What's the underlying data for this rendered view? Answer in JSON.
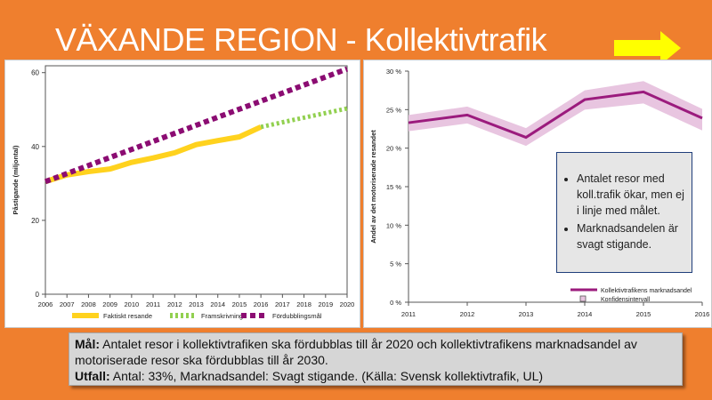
{
  "slide": {
    "title": "VÄXANDE REGION - Kollektivtrafik",
    "colors": {
      "background": "#ef7f2e",
      "arrow": "#ffff00"
    }
  },
  "chart_data": [
    {
      "type": "line",
      "ylabel": "Påstigande (miljontal)",
      "xlabel": "",
      "x": [
        2006,
        2007,
        2008,
        2009,
        2010,
        2011,
        2012,
        2013,
        2014,
        2015,
        2016,
        2017,
        2018,
        2019,
        2020
      ],
      "ylim": [
        0,
        60
      ],
      "yticks": [
        0,
        20,
        40,
        60
      ],
      "series": [
        {
          "name": "Faktiskt resande",
          "color": "#ffd21e",
          "style": "solid",
          "x": [
            2006,
            2007,
            2008,
            2009,
            2010,
            2011,
            2012,
            2013,
            2014,
            2015,
            2016
          ],
          "values": [
            30.5,
            32.3,
            33.2,
            33.9,
            35.7,
            36.9,
            38.3,
            40.5,
            41.6,
            42.6,
            45.3
          ]
        },
        {
          "name": "Framskrivning",
          "color": "#92d050",
          "style": "dashed",
          "x": [
            2016,
            2020
          ],
          "values": [
            45.3,
            50.3
          ]
        },
        {
          "name": "Fördubblingsmål",
          "color": "#8b0c72",
          "style": "dashed",
          "x": [
            2006,
            2020
          ],
          "values": [
            30.5,
            61.0
          ]
        }
      ]
    },
    {
      "type": "area",
      "ylabel": "Andel av det motoriserade resandet",
      "xlabel": "",
      "x": [
        2011,
        2012,
        2013,
        2014,
        2015,
        2016
      ],
      "ylim": [
        0,
        30
      ],
      "yticks": [
        0,
        5,
        10,
        15,
        20,
        25,
        30
      ],
      "ytick_labels": [
        "0 %",
        "5 %",
        "10 %",
        "15 %",
        "20 %",
        "25 %",
        "30 %"
      ],
      "series": [
        {
          "name": "Kollektivtrafikens marknadsandel",
          "color": "#9b1b7d",
          "values": [
            23.3,
            24.3,
            21.4,
            26.3,
            27.3,
            23.9
          ]
        },
        {
          "name": "Konfidensintervall",
          "color": "#e8c5e0",
          "lower": [
            22.2,
            23.2,
            20.3,
            25.0,
            25.8,
            22.3
          ],
          "upper": [
            24.3,
            25.4,
            22.6,
            27.5,
            28.7,
            25.1
          ]
        }
      ]
    }
  ],
  "note": {
    "items": [
      "Antalet resor med koll.trafik ökar, men ej i linje med målet.",
      "Marknadsandelen är svagt stigande."
    ]
  },
  "summary": {
    "goal_label": "Mål:",
    "goal_text": "Antalet resor i kollektivtrafiken ska fördubblas till år 2020 och kollektivtrafikens marknadsandel av motoriserade resor ska fördubblas till år 2030.",
    "outcome_label": "Utfall:",
    "outcome_text": "Antal: 33%, Marknadsandel: Svagt stigande. (Källa: Svensk kollektivtrafik, UL)"
  }
}
